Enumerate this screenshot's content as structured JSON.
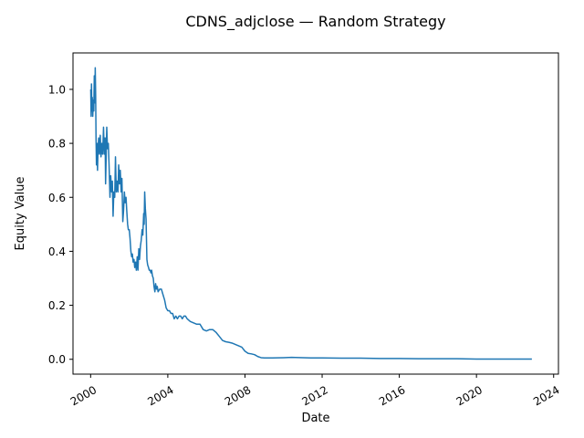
{
  "chart_data": {
    "type": "line",
    "title": "CDNS_adjclose — Random Strategy",
    "xlabel": "Date",
    "ylabel": "Equity Value",
    "xlim": [
      "1999-02-01",
      "2024-04-01"
    ],
    "ylim": [
      -0.055,
      1.135
    ],
    "grid": false,
    "x_ticks": [
      {
        "label": "2000",
        "value": "2000-01-01"
      },
      {
        "label": "2004",
        "value": "2004-01-01"
      },
      {
        "label": "2008",
        "value": "2008-01-01"
      },
      {
        "label": "2012",
        "value": "2012-01-01"
      },
      {
        "label": "2016",
        "value": "2016-01-01"
      },
      {
        "label": "2020",
        "value": "2020-01-01"
      },
      {
        "label": "2024",
        "value": "2024-01-01"
      }
    ],
    "y_ticks": [
      {
        "label": "0.0",
        "value": 0.0
      },
      {
        "label": "0.2",
        "value": 0.2
      },
      {
        "label": "0.4",
        "value": 0.4
      },
      {
        "label": "0.6",
        "value": 0.6
      },
      {
        "label": "0.8",
        "value": 0.8
      },
      {
        "label": "1.0",
        "value": 1.0
      }
    ],
    "series": [
      {
        "color": "#1f77b4",
        "points": [
          [
            "2000-01-03",
            1.0
          ],
          [
            "2000-01-10",
            0.9
          ],
          [
            "2000-01-17",
            1.02
          ],
          [
            "2000-01-24",
            0.92
          ],
          [
            "2000-02-01",
            0.97
          ],
          [
            "2000-02-10",
            0.9
          ],
          [
            "2000-02-20",
            0.96
          ],
          [
            "2000-03-01",
            0.92
          ],
          [
            "2000-03-10",
            1.05
          ],
          [
            "2000-03-20",
            0.95
          ],
          [
            "2000-03-28",
            1.08
          ],
          [
            "2000-04-05",
            0.98
          ],
          [
            "2000-04-12",
            0.82
          ],
          [
            "2000-04-20",
            0.72
          ],
          [
            "2000-05-01",
            0.8
          ],
          [
            "2000-05-10",
            0.7
          ],
          [
            "2000-05-20",
            0.78
          ],
          [
            "2000-06-01",
            0.82
          ],
          [
            "2000-06-15",
            0.76
          ],
          [
            "2000-07-01",
            0.83
          ],
          [
            "2000-07-15",
            0.75
          ],
          [
            "2000-08-01",
            0.8
          ],
          [
            "2000-08-15",
            0.76
          ],
          [
            "2000-09-01",
            0.86
          ],
          [
            "2000-09-15",
            0.76
          ],
          [
            "2000-10-01",
            0.82
          ],
          [
            "2000-10-10",
            0.65
          ],
          [
            "2000-10-20",
            0.74
          ],
          [
            "2000-11-01",
            0.86
          ],
          [
            "2000-11-15",
            0.78
          ],
          [
            "2000-12-01",
            0.8
          ],
          [
            "2000-12-15",
            0.72
          ],
          [
            "2001-01-01",
            0.6
          ],
          [
            "2001-01-15",
            0.68
          ],
          [
            "2001-02-01",
            0.62
          ],
          [
            "2001-02-15",
            0.66
          ],
          [
            "2001-03-01",
            0.53
          ],
          [
            "2001-03-15",
            0.62
          ],
          [
            "2001-04-01",
            0.6
          ],
          [
            "2001-04-15",
            0.75
          ],
          [
            "2001-05-01",
            0.62
          ],
          [
            "2001-05-15",
            0.66
          ],
          [
            "2001-06-01",
            0.62
          ],
          [
            "2001-06-15",
            0.72
          ],
          [
            "2001-07-01",
            0.65
          ],
          [
            "2001-07-15",
            0.7
          ],
          [
            "2001-08-01",
            0.62
          ],
          [
            "2001-08-15",
            0.67
          ],
          [
            "2001-09-01",
            0.51
          ],
          [
            "2001-09-15",
            0.55
          ],
          [
            "2001-10-01",
            0.62
          ],
          [
            "2001-10-15",
            0.58
          ],
          [
            "2001-11-01",
            0.6
          ],
          [
            "2001-11-15",
            0.55
          ],
          [
            "2001-12-01",
            0.5
          ],
          [
            "2001-12-15",
            0.48
          ],
          [
            "2002-01-01",
            0.48
          ],
          [
            "2002-01-15",
            0.45
          ],
          [
            "2002-02-01",
            0.4
          ],
          [
            "2002-02-15",
            0.38
          ],
          [
            "2002-03-01",
            0.39
          ],
          [
            "2002-03-15",
            0.36
          ],
          [
            "2002-04-01",
            0.37
          ],
          [
            "2002-04-15",
            0.34
          ],
          [
            "2002-05-01",
            0.36
          ],
          [
            "2002-05-15",
            0.33
          ],
          [
            "2002-06-01",
            0.38
          ],
          [
            "2002-06-15",
            0.33
          ],
          [
            "2002-07-01",
            0.41
          ],
          [
            "2002-07-15",
            0.37
          ],
          [
            "2002-08-01",
            0.42
          ],
          [
            "2002-08-15",
            0.44
          ],
          [
            "2002-09-01",
            0.48
          ],
          [
            "2002-09-15",
            0.46
          ],
          [
            "2002-10-01",
            0.54
          ],
          [
            "2002-10-10",
            0.5
          ],
          [
            "2002-10-20",
            0.62
          ],
          [
            "2002-11-01",
            0.56
          ],
          [
            "2002-11-15",
            0.52
          ],
          [
            "2002-12-01",
            0.37
          ],
          [
            "2002-12-15",
            0.35
          ],
          [
            "2003-01-01",
            0.34
          ],
          [
            "2003-01-15",
            0.33
          ],
          [
            "2003-02-01",
            0.33
          ],
          [
            "2003-02-15",
            0.32
          ],
          [
            "2003-03-01",
            0.33
          ],
          [
            "2003-03-15",
            0.31
          ],
          [
            "2003-04-01",
            0.3
          ],
          [
            "2003-04-15",
            0.27
          ],
          [
            "2003-05-01",
            0.25
          ],
          [
            "2003-05-15",
            0.28
          ],
          [
            "2003-06-01",
            0.26
          ],
          [
            "2003-06-15",
            0.27
          ],
          [
            "2003-07-01",
            0.25
          ],
          [
            "2003-08-01",
            0.26
          ],
          [
            "2003-09-01",
            0.26
          ],
          [
            "2003-10-01",
            0.24
          ],
          [
            "2003-11-01",
            0.22
          ],
          [
            "2003-12-01",
            0.19
          ],
          [
            "2004-01-01",
            0.18
          ],
          [
            "2004-02-01",
            0.18
          ],
          [
            "2004-03-01",
            0.17
          ],
          [
            "2004-04-01",
            0.17
          ],
          [
            "2004-05-01",
            0.15
          ],
          [
            "2004-06-01",
            0.16
          ],
          [
            "2004-07-01",
            0.15
          ],
          [
            "2004-08-01",
            0.16
          ],
          [
            "2004-09-01",
            0.16
          ],
          [
            "2004-10-01",
            0.15
          ],
          [
            "2004-11-01",
            0.16
          ],
          [
            "2004-12-01",
            0.16
          ],
          [
            "2005-01-01",
            0.15
          ],
          [
            "2005-03-01",
            0.14
          ],
          [
            "2005-05-01",
            0.135
          ],
          [
            "2005-07-01",
            0.13
          ],
          [
            "2005-09-01",
            0.13
          ],
          [
            "2005-11-01",
            0.11
          ],
          [
            "2006-01-01",
            0.105
          ],
          [
            "2006-03-01",
            0.11
          ],
          [
            "2006-05-01",
            0.11
          ],
          [
            "2006-07-01",
            0.1
          ],
          [
            "2006-09-01",
            0.085
          ],
          [
            "2006-11-01",
            0.07
          ],
          [
            "2007-01-01",
            0.065
          ],
          [
            "2007-03-01",
            0.063
          ],
          [
            "2007-05-01",
            0.06
          ],
          [
            "2007-07-01",
            0.055
          ],
          [
            "2007-09-01",
            0.05
          ],
          [
            "2007-11-01",
            0.045
          ],
          [
            "2008-01-01",
            0.03
          ],
          [
            "2008-03-01",
            0.022
          ],
          [
            "2008-05-01",
            0.02
          ],
          [
            "2008-07-01",
            0.017
          ],
          [
            "2008-09-01",
            0.01
          ],
          [
            "2008-11-01",
            0.006
          ],
          [
            "2009-01-01",
            0.005
          ],
          [
            "2009-06-01",
            0.005
          ],
          [
            "2010-01-01",
            0.006
          ],
          [
            "2010-06-01",
            0.007
          ],
          [
            "2011-01-01",
            0.006
          ],
          [
            "2011-06-01",
            0.005
          ],
          [
            "2012-01-01",
            0.005
          ],
          [
            "2013-01-01",
            0.004
          ],
          [
            "2014-01-01",
            0.004
          ],
          [
            "2015-01-01",
            0.003
          ],
          [
            "2016-01-01",
            0.003
          ],
          [
            "2017-01-01",
            0.002
          ],
          [
            "2018-01-01",
            0.002
          ],
          [
            "2019-01-01",
            0.002
          ],
          [
            "2020-01-01",
            0.001
          ],
          [
            "2021-01-01",
            0.001
          ],
          [
            "2022-01-01",
            0.001
          ],
          [
            "2022-11-15",
            0.001
          ]
        ]
      }
    ]
  }
}
